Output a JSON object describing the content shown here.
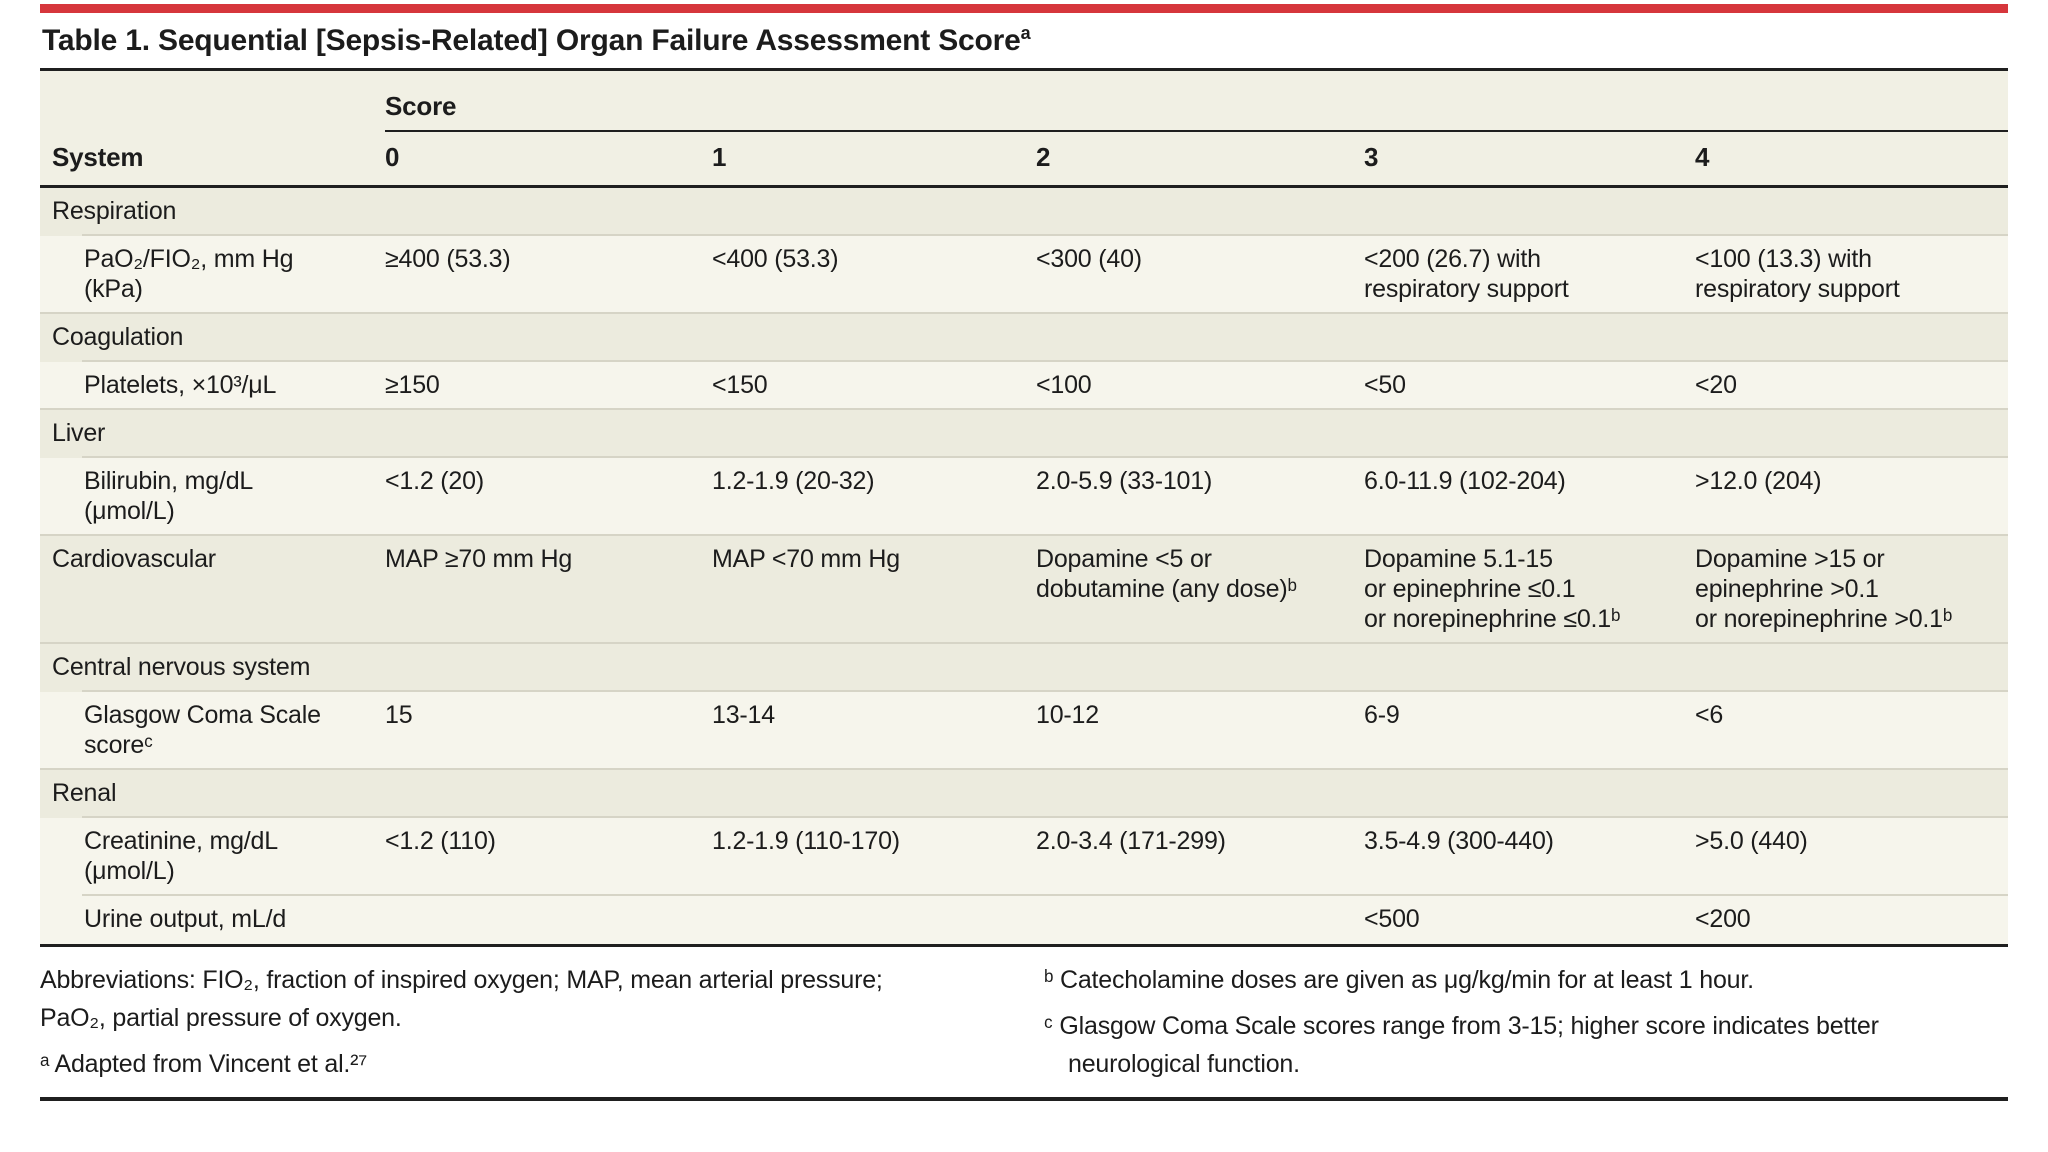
{
  "colors": {
    "accent_red": "#d6363c",
    "category_row_bg": "#ecebde",
    "item_row_bg": "#f6f5ec",
    "header_bg": "#f1f0e4",
    "rule_black": "#1f1f1f",
    "rule_thin": "#d6d4c6"
  },
  "title": {
    "text": "Table 1. Sequential [Sepsis-Related] Organ Failure Assessment Score",
    "sup": "a"
  },
  "table": {
    "score_header": "Score",
    "system_header": "System",
    "score_columns": [
      "0",
      "1",
      "2",
      "3",
      "4"
    ],
    "rows": [
      {
        "type": "category",
        "label": "Respiration"
      },
      {
        "type": "item",
        "label": "PaO₂/FIO₂, mm Hg\n(kPa)",
        "cells": [
          "≥400 (53.3)",
          "<400 (53.3)",
          "<300 (40)",
          "<200 (26.7) with\nrespiratory support",
          "<100 (13.3) with\nrespiratory support"
        ]
      },
      {
        "type": "category",
        "label": "Coagulation"
      },
      {
        "type": "item",
        "label": "Platelets, ×10³/μL",
        "cells": [
          "≥150",
          "<150",
          "<100",
          "<50",
          "<20"
        ]
      },
      {
        "type": "category",
        "label": "Liver"
      },
      {
        "type": "item",
        "label": "Bilirubin, mg/dL\n(μmol/L)",
        "cells": [
          "<1.2 (20)",
          "1.2-1.9 (20-32)",
          "2.0-5.9 (33-101)",
          "6.0-11.9 (102-204)",
          ">12.0 (204)"
        ]
      },
      {
        "type": "category-with-values",
        "label": "Cardiovascular",
        "cells": [
          "MAP ≥70 mm Hg",
          "MAP <70 mm Hg",
          "Dopamine <5 or\ndobutamine (any dose)ᵇ",
          "Dopamine 5.1-15\nor epinephrine ≤0.1\nor norepinephrine ≤0.1ᵇ",
          "Dopamine >15 or\nepinephrine >0.1\nor norepinephrine >0.1ᵇ"
        ]
      },
      {
        "type": "category",
        "label": "Central nervous system"
      },
      {
        "type": "item",
        "label": "Glasgow Coma Scale\nscoreᶜ",
        "cells": [
          "15",
          "13-14",
          "10-12",
          "6-9",
          "<6"
        ]
      },
      {
        "type": "category",
        "label": "Renal"
      },
      {
        "type": "item",
        "label": "Creatinine, mg/dL\n(μmol/L)",
        "cells": [
          "<1.2 (110)",
          "1.2-1.9 (110-170)",
          "2.0-3.4 (171-299)",
          "3.5-4.9 (300-440)",
          ">5.0 (440)"
        ]
      },
      {
        "type": "item",
        "label": "Urine output, mL/d",
        "cells": [
          "",
          "",
          "",
          "<500",
          "<200"
        ]
      }
    ]
  },
  "footnotes": {
    "left": [
      "Abbreviations: FIO₂, fraction of inspired oxygen; MAP, mean arterial pressure;\nPaO₂, partial pressure of oxygen.",
      "ᵃ Adapted from Vincent et al.²⁷"
    ],
    "right": [
      "ᵇ Catecholamine doses are given as μg/kg/min for at least 1 hour.",
      "ᶜ Glasgow Coma Scale scores range from 3-15; higher score indicates better\nneurological function."
    ]
  }
}
